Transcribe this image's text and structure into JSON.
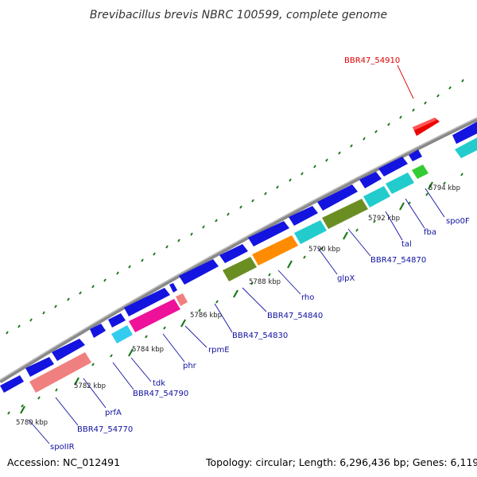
{
  "title": "Brevibacillus brevis NBRC 100599, complete genome",
  "accession": "Accession: NC_012491",
  "topology": "Topology: circular; Length: 6,296,436 bp; Genes: 6,119",
  "colors": {
    "backbone": "#8a8a8a",
    "tick": "#1a7a1a",
    "label": "#1010a0",
    "highlight": "#dd0000"
  },
  "ticks": [
    "5780 kbp",
    "5782 kbp",
    "5784 kbp",
    "5786 kbp",
    "5788 kbp",
    "5790 kbp",
    "5792 kbp",
    "5794 kbp"
  ],
  "gene_labels": [
    "spoIIR",
    "BBR47_54770",
    "prfA",
    "BBR47_54790",
    "tdk",
    "phr",
    "rpmE",
    "BBR47_54830",
    "BBR47_54840",
    "rho",
    "glpX",
    "BBR47_54870",
    "tal",
    "fba",
    "spo0F",
    "BBR47_54910"
  ]
}
